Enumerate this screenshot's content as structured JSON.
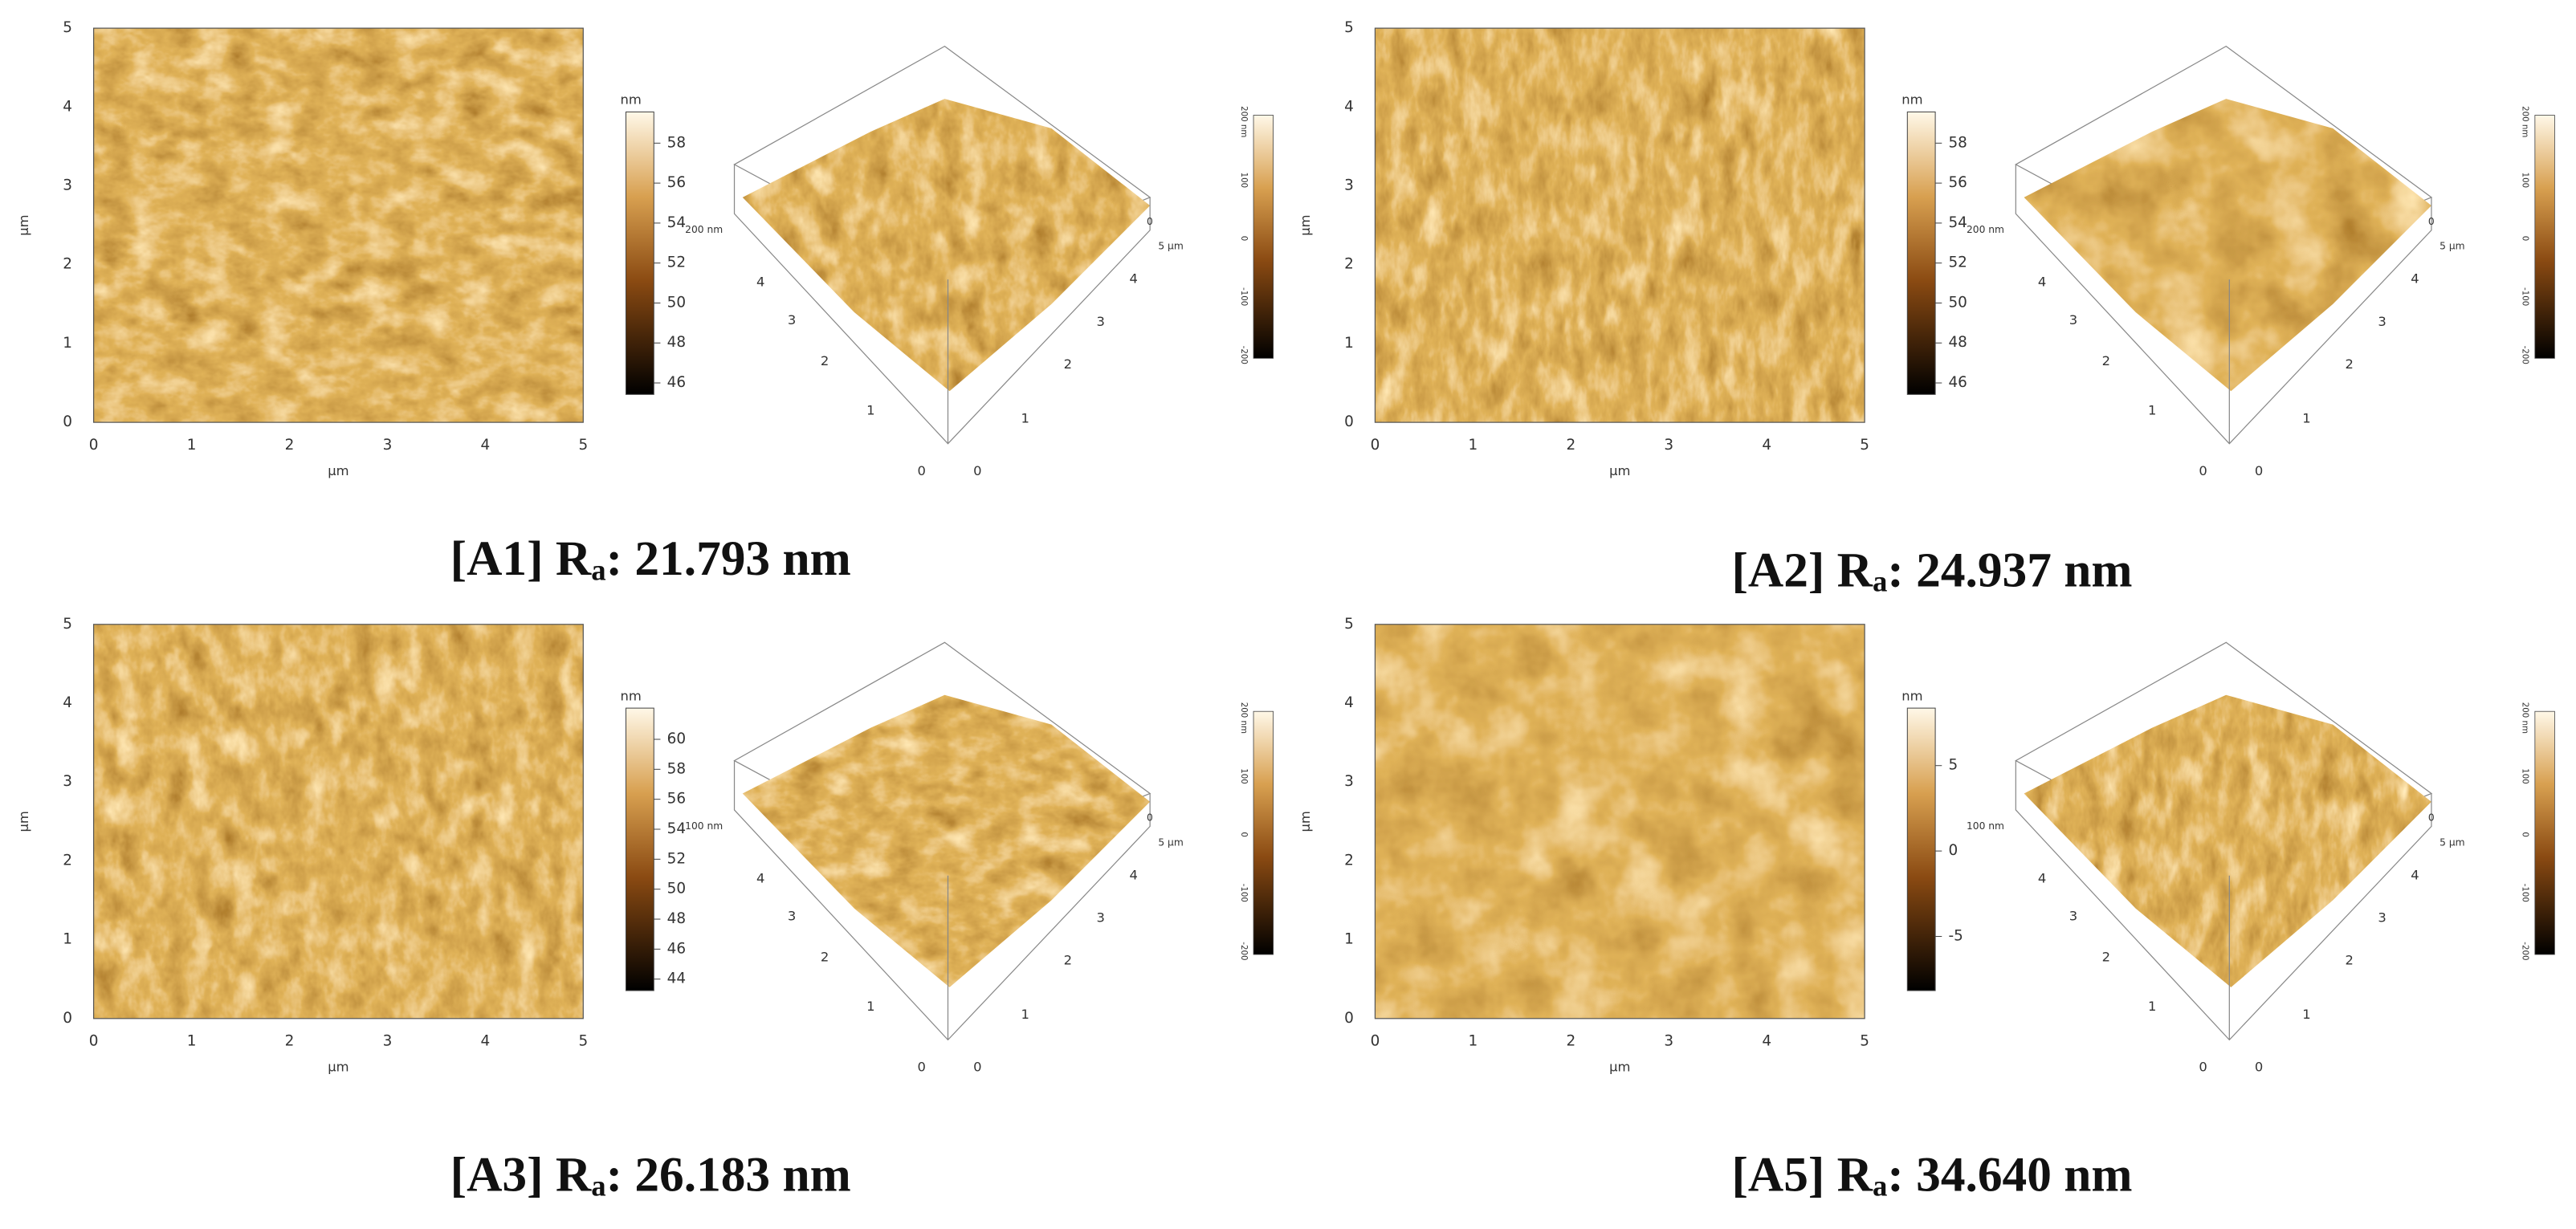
{
  "panels": [
    {
      "id": "A1",
      "image_2d": {
        "xticks": [
          0,
          1,
          2,
          3,
          4,
          5
        ],
        "yticks": [
          0,
          1,
          2,
          3,
          4,
          5
        ],
        "xlabel": "µm",
        "ylabel": "µm",
        "colorbar": {
          "unit": "nm",
          "ticks": [
            58,
            56,
            54,
            52,
            50,
            48,
            46
          ]
        }
      },
      "view_3d": {
        "z_label": "200 nm",
        "left_ticks": [
          4,
          3,
          2,
          1,
          0
        ],
        "right_ticks": [
          0,
          1,
          2,
          3,
          4
        ],
        "right_end": "5 µm",
        "right_top": 0,
        "colorbar": [
          "200 nm",
          100,
          0,
          -100,
          -200
        ]
      },
      "caption": {
        "prefix": "[A1] R",
        "subscript": "a",
        "suffix": ": 21.793 nm"
      }
    },
    {
      "id": "A2",
      "image_2d": {
        "xticks": [
          0,
          1,
          2,
          3,
          4,
          5
        ],
        "yticks": [
          0,
          1,
          2,
          3,
          4,
          5
        ],
        "xlabel": "µm",
        "ylabel": "µm",
        "colorbar": {
          "unit": "nm",
          "ticks": [
            58,
            56,
            54,
            52,
            50,
            48,
            46
          ]
        }
      },
      "view_3d": {
        "z_label": "200 nm",
        "left_ticks": [
          4,
          3,
          2,
          1,
          0
        ],
        "right_ticks": [
          0,
          1,
          2,
          3,
          4
        ],
        "right_end": "5 µm",
        "right_top": 0,
        "colorbar": [
          "200 nm",
          100,
          0,
          -100,
          -200
        ]
      },
      "caption": {
        "prefix": "[A2] R",
        "subscript": "a",
        "suffix": ": 24.937 nm"
      }
    },
    {
      "id": "A3",
      "image_2d": {
        "xticks": [
          0,
          1,
          2,
          3,
          4,
          5
        ],
        "yticks": [
          0,
          1,
          2,
          3,
          4,
          5
        ],
        "xlabel": "µm",
        "ylabel": "µm",
        "colorbar": {
          "unit": "nm",
          "ticks": [
            60,
            58,
            56,
            54,
            52,
            50,
            48,
            46,
            44
          ]
        }
      },
      "view_3d": {
        "z_label": "100 nm",
        "left_ticks": [
          4,
          3,
          2,
          1,
          0
        ],
        "right_ticks": [
          0,
          1,
          2,
          3,
          4
        ],
        "right_end": "5 µm",
        "right_top": 0,
        "colorbar": [
          "200 nm",
          100,
          0,
          -100,
          -200
        ]
      },
      "caption": {
        "prefix": "[A3] R",
        "subscript": "a",
        "suffix": ": 26.183 nm"
      }
    },
    {
      "id": "A5",
      "image_2d": {
        "xticks": [
          0,
          1,
          2,
          3,
          4,
          5
        ],
        "yticks": [
          0,
          1,
          2,
          3,
          4,
          5
        ],
        "xlabel": "µm",
        "ylabel": "µm",
        "colorbar": {
          "unit": "nm",
          "ticks": [
            5,
            0,
            -5
          ]
        }
      },
      "view_3d": {
        "z_label": "100 nm",
        "left_ticks": [
          4,
          3,
          2,
          1,
          0
        ],
        "right_ticks": [
          0,
          1,
          2,
          3,
          4
        ],
        "right_end": "5 µm",
        "right_top": 0,
        "colorbar": [
          "200 nm",
          100,
          0,
          -100,
          -200
        ]
      },
      "caption": {
        "prefix": "[A5] R",
        "subscript": "a",
        "suffix": ": 34.640 nm"
      }
    }
  ]
}
